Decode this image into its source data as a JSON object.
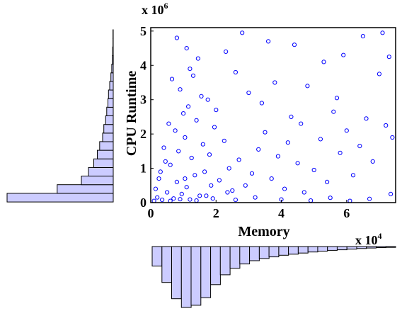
{
  "chart_data": [
    {
      "type": "scatter",
      "xlabel": "Memory",
      "ylabel": "CPU Runtime",
      "x_exponent_label": {
        "base": "x 10",
        "exp": "4"
      },
      "y_exponent_label": {
        "base": "x 10",
        "exp": "6"
      },
      "xlim": [
        0,
        75000
      ],
      "ylim": [
        0,
        5100000
      ],
      "x_ticks": [
        0,
        20000,
        40000,
        60000
      ],
      "x_tick_labels": [
        "0",
        "2",
        "4",
        "6"
      ],
      "y_ticks": [
        0,
        1000000,
        2000000,
        3000000,
        4000000,
        5000000
      ],
      "y_tick_labels": [
        "0",
        "1",
        "2",
        "3",
        "4",
        "5"
      ],
      "marker_color": "#0000ff",
      "grid": false,
      "series": [
        {
          "points": [
            [
              2000,
              150000
            ],
            [
              3500,
              80000
            ],
            [
              5000,
              300000
            ],
            [
              7000,
              120000
            ],
            [
              8000,
              600000
            ],
            [
              9500,
              250000
            ],
            [
              11000,
              450000
            ],
            [
              12000,
              90000
            ],
            [
              13500,
              800000
            ],
            [
              15000,
              200000
            ],
            [
              6000,
              1100000
            ],
            [
              8500,
              1500000
            ],
            [
              10500,
              1900000
            ],
            [
              12500,
              1300000
            ],
            [
              14000,
              2400000
            ],
            [
              16000,
              1700000
            ],
            [
              11500,
              2800000
            ],
            [
              9000,
              3300000
            ],
            [
              13000,
              3700000
            ],
            [
              15500,
              3100000
            ],
            [
              7500,
              2100000
            ],
            [
              10000,
              2600000
            ],
            [
              12000,
              3900000
            ],
            [
              14500,
              4200000
            ],
            [
              16500,
              900000
            ],
            [
              18000,
              1400000
            ],
            [
              19500,
              2200000
            ],
            [
              21000,
              650000
            ],
            [
              22500,
              1800000
            ],
            [
              24000,
              1000000
            ],
            [
              4000,
              1600000
            ],
            [
              5500,
              2300000
            ],
            [
              3000,
              900000
            ],
            [
              6500,
              3600000
            ],
            [
              11000,
              4500000
            ],
            [
              8000,
              4800000
            ],
            [
              17500,
              3000000
            ],
            [
              20000,
              2700000
            ],
            [
              25000,
              350000
            ],
            [
              27000,
              1250000
            ],
            [
              29000,
              500000
            ],
            [
              31000,
              850000
            ],
            [
              33000,
              1550000
            ],
            [
              35000,
              2050000
            ],
            [
              37000,
              700000
            ],
            [
              39000,
              1350000
            ],
            [
              41000,
              400000
            ],
            [
              43000,
              2500000
            ],
            [
              45000,
              1150000
            ],
            [
              47000,
              300000
            ],
            [
              30000,
              3200000
            ],
            [
              34000,
              2900000
            ],
            [
              38000,
              3500000
            ],
            [
              42000,
              1750000
            ],
            [
              46000,
              2300000
            ],
            [
              50000,
              950000
            ],
            [
              52000,
              1850000
            ],
            [
              54000,
              600000
            ],
            [
              56000,
              2650000
            ],
            [
              58000,
              1450000
            ],
            [
              48000,
              3400000
            ],
            [
              53000,
              4100000
            ],
            [
              57000,
              3050000
            ],
            [
              60000,
              2100000
            ],
            [
              62000,
              800000
            ],
            [
              64000,
              1650000
            ],
            [
              66000,
              2450000
            ],
            [
              68000,
              1200000
            ],
            [
              70000,
              3750000
            ],
            [
              72000,
              2250000
            ],
            [
              44000,
              4600000
            ],
            [
              59000,
              4300000
            ],
            [
              65000,
              4850000
            ],
            [
              71000,
              4950000
            ],
            [
              73000,
              4250000
            ],
            [
              74000,
              1900000
            ],
            [
              36000,
              4700000
            ],
            [
              26000,
              3800000
            ],
            [
              23000,
              4400000
            ],
            [
              28000,
              4950000
            ],
            [
              1000,
              50000
            ],
            [
              1500,
              400000
            ],
            [
              2500,
              700000
            ],
            [
              4500,
              1200000
            ],
            [
              6000,
              50000
            ],
            [
              9000,
              100000
            ],
            [
              14000,
              60000
            ],
            [
              17000,
              200000
            ],
            [
              19000,
              120000
            ],
            [
              26000,
              80000
            ],
            [
              32000,
              150000
            ],
            [
              40000,
              90000
            ],
            [
              49000,
              60000
            ],
            [
              55000,
              140000
            ],
            [
              61000,
              50000
            ],
            [
              67000,
              110000
            ],
            [
              73500,
              250000
            ],
            [
              10500,
              700000
            ],
            [
              18500,
              500000
            ],
            [
              23500,
              300000
            ]
          ]
        }
      ]
    },
    {
      "type": "bar",
      "orientation": "horizontal",
      "position": "left of scatter (marginal histogram of CPU Runtime)",
      "bins": 20,
      "values": [
        1800,
        950,
        540,
        420,
        330,
        270,
        230,
        180,
        160,
        130,
        110,
        90,
        80,
        60,
        40,
        25,
        15,
        10,
        5,
        5
      ],
      "bar_color": "#ccccff"
    },
    {
      "type": "bar",
      "orientation": "vertical-downward",
      "position": "below scatter (marginal histogram of Memory)",
      "bins": 25,
      "values": [
        180,
        330,
        480,
        560,
        540,
        470,
        350,
        260,
        200,
        160,
        130,
        110,
        95,
        80,
        70,
        60,
        50,
        42,
        35,
        30,
        24,
        18,
        14,
        10,
        8
      ],
      "bar_color": "#ccccff"
    }
  ]
}
